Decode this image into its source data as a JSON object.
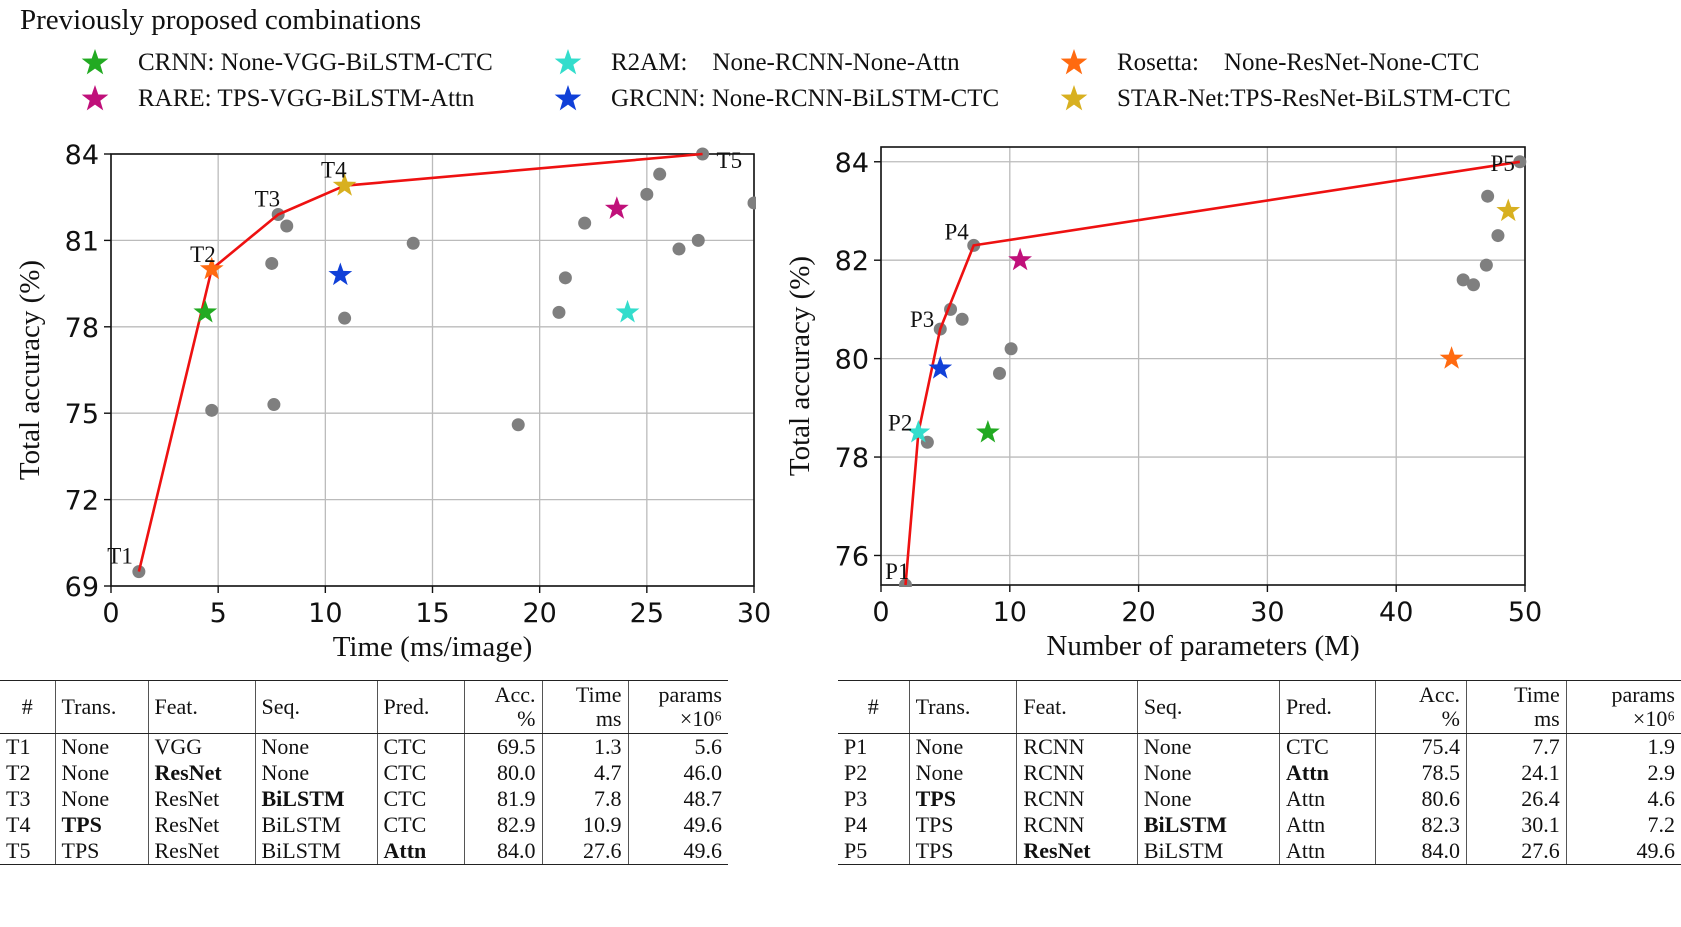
{
  "title": "Previously proposed combinations",
  "colors": {
    "frontier": "#ee1111",
    "point": "#7f7f7f",
    "grid": "#bbbbbb",
    "CRNN": "#22aa22",
    "RARE": "#c0107a",
    "R2AM": "#33ddcc",
    "GRCNN": "#1040d8",
    "Rosetta": "#ff6a10",
    "STAR-Net": "#d8b020"
  },
  "legend": [
    {
      "key": "CRNN",
      "text": "CRNN: None-VGG-BiLSTM-CTC"
    },
    {
      "key": "R2AM",
      "text": "R2AM:    None-RCNN-None-Attn"
    },
    {
      "key": "Rosetta",
      "text": "Rosetta:    None-ResNet-None-CTC"
    },
    {
      "key": "RARE",
      "text": "RARE: TPS-VGG-BiLSTM-Attn"
    },
    {
      "key": "GRCNN",
      "text": "GRCNN: None-RCNN-BiLSTM-CTC"
    },
    {
      "key": "STAR-Net",
      "text": "STAR-Net:TPS-ResNet-BiLSTM-CTC"
    }
  ],
  "chart_data": [
    {
      "type": "scatter",
      "xlabel": "Time (ms/image)",
      "ylabel": "Total accuracy (%)",
      "xlim": [
        0,
        30
      ],
      "ylim": [
        69,
        84
      ],
      "xticks": [
        0,
        5,
        10,
        15,
        20,
        25,
        30
      ],
      "yticks": [
        69,
        72,
        75,
        78,
        81,
        84
      ],
      "grid": true,
      "points": [
        [
          1.3,
          69.5
        ],
        [
          4.7,
          75.1
        ],
        [
          7.6,
          75.3
        ],
        [
          7.5,
          80.2
        ],
        [
          8.2,
          81.5
        ],
        [
          7.8,
          81.9
        ],
        [
          10.9,
          78.3
        ],
        [
          14.1,
          80.9
        ],
        [
          19.0,
          74.6
        ],
        [
          20.9,
          78.5
        ],
        [
          21.2,
          79.7
        ],
        [
          22.1,
          81.6
        ],
        [
          25.0,
          82.6
        ],
        [
          25.6,
          83.3
        ],
        [
          26.5,
          80.7
        ],
        [
          27.4,
          81.0
        ],
        [
          27.6,
          84.0
        ],
        [
          30.0,
          82.3
        ]
      ],
      "frontier": {
        "labels": [
          "T1",
          "T2",
          "T3",
          "T4",
          "T5"
        ],
        "x": [
          1.3,
          4.7,
          7.8,
          10.9,
          27.6
        ],
        "y": [
          69.5,
          80.0,
          81.9,
          82.9,
          84.0
        ]
      },
      "models": [
        {
          "key": "CRNN",
          "x": 4.4,
          "y": 78.5
        },
        {
          "key": "Rosetta",
          "x": 4.7,
          "y": 80.0
        },
        {
          "key": "STAR-Net",
          "x": 10.9,
          "y": 82.9
        },
        {
          "key": "GRCNN",
          "x": 10.7,
          "y": 79.8
        },
        {
          "key": "RARE",
          "x": 23.6,
          "y": 82.1
        },
        {
          "key": "R2AM",
          "x": 24.1,
          "y": 78.5
        }
      ]
    },
    {
      "type": "scatter",
      "xlabel": "Number of parameters (M)",
      "ylabel": "Total accuracy (%)",
      "xlim": [
        0,
        50
      ],
      "ylim": [
        75.4,
        84.3
      ],
      "xticks": [
        0,
        10,
        20,
        30,
        40,
        50
      ],
      "yticks": [
        76,
        78,
        80,
        82,
        84
      ],
      "grid": true,
      "points": [
        [
          1.9,
          75.4
        ],
        [
          3.6,
          78.3
        ],
        [
          4.6,
          80.6
        ],
        [
          5.4,
          81.0
        ],
        [
          6.3,
          80.8
        ],
        [
          7.2,
          82.3
        ],
        [
          9.2,
          79.7
        ],
        [
          10.1,
          80.2
        ],
        [
          45.2,
          81.6
        ],
        [
          46.0,
          81.5
        ],
        [
          47.0,
          81.9
        ],
        [
          47.1,
          83.3
        ],
        [
          47.9,
          82.5
        ],
        [
          49.6,
          84.0
        ]
      ],
      "frontier": {
        "labels": [
          "P1",
          "P2",
          "P3",
          "P4",
          "P5"
        ],
        "x": [
          1.9,
          2.9,
          4.6,
          7.2,
          49.6
        ],
        "y": [
          75.4,
          78.5,
          80.6,
          82.3,
          84.0
        ]
      },
      "models": [
        {
          "key": "R2AM",
          "x": 2.9,
          "y": 78.5
        },
        {
          "key": "GRCNN",
          "x": 4.6,
          "y": 79.8
        },
        {
          "key": "CRNN",
          "x": 8.3,
          "y": 78.5
        },
        {
          "key": "RARE",
          "x": 10.8,
          "y": 82.0
        },
        {
          "key": "Rosetta",
          "x": 44.3,
          "y": 80.0
        },
        {
          "key": "STAR-Net",
          "x": 48.7,
          "y": 83.0
        }
      ]
    }
  ],
  "tables": [
    {
      "headers": [
        "#",
        "Trans.",
        "Feat.",
        "Seq.",
        "Pred.",
        "Acc.",
        "Time",
        "params"
      ],
      "subheaders": [
        "",
        "",
        "",
        "",
        "",
        "%",
        "ms",
        "×10⁶"
      ],
      "rows": [
        [
          "T1",
          "None",
          "VGG",
          "None",
          "CTC",
          "69.5",
          "1.3",
          "5.6"
        ],
        [
          "T2",
          "None",
          "ResNet",
          "None",
          "CTC",
          "80.0",
          "4.7",
          "46.0"
        ],
        [
          "T3",
          "None",
          "ResNet",
          "BiLSTM",
          "CTC",
          "81.9",
          "7.8",
          "48.7"
        ],
        [
          "T4",
          "TPS",
          "ResNet",
          "BiLSTM",
          "CTC",
          "82.9",
          "10.9",
          "49.6"
        ],
        [
          "T5",
          "TPS",
          "ResNet",
          "BiLSTM",
          "Attn",
          "84.0",
          "27.6",
          "49.6"
        ]
      ],
      "bold": [
        [
          1,
          2
        ],
        [
          2,
          3
        ],
        [
          3,
          1
        ],
        [
          4,
          4
        ]
      ]
    },
    {
      "headers": [
        "#",
        "Trans.",
        "Feat.",
        "Seq.",
        "Pred.",
        "Acc.",
        "Time",
        "params"
      ],
      "subheaders": [
        "",
        "",
        "",
        "",
        "",
        "%",
        "ms",
        "×10⁶"
      ],
      "rows": [
        [
          "P1",
          "None",
          "RCNN",
          "None",
          "CTC",
          "75.4",
          "7.7",
          "1.9"
        ],
        [
          "P2",
          "None",
          "RCNN",
          "None",
          "Attn",
          "78.5",
          "24.1",
          "2.9"
        ],
        [
          "P3",
          "TPS",
          "RCNN",
          "None",
          "Attn",
          "80.6",
          "26.4",
          "4.6"
        ],
        [
          "P4",
          "TPS",
          "RCNN",
          "BiLSTM",
          "Attn",
          "82.3",
          "30.1",
          "7.2"
        ],
        [
          "P5",
          "TPS",
          "ResNet",
          "BiLSTM",
          "Attn",
          "84.0",
          "27.6",
          "49.6"
        ]
      ],
      "bold": [
        [
          1,
          4
        ],
        [
          2,
          1
        ],
        [
          3,
          3
        ],
        [
          4,
          2
        ]
      ]
    }
  ]
}
